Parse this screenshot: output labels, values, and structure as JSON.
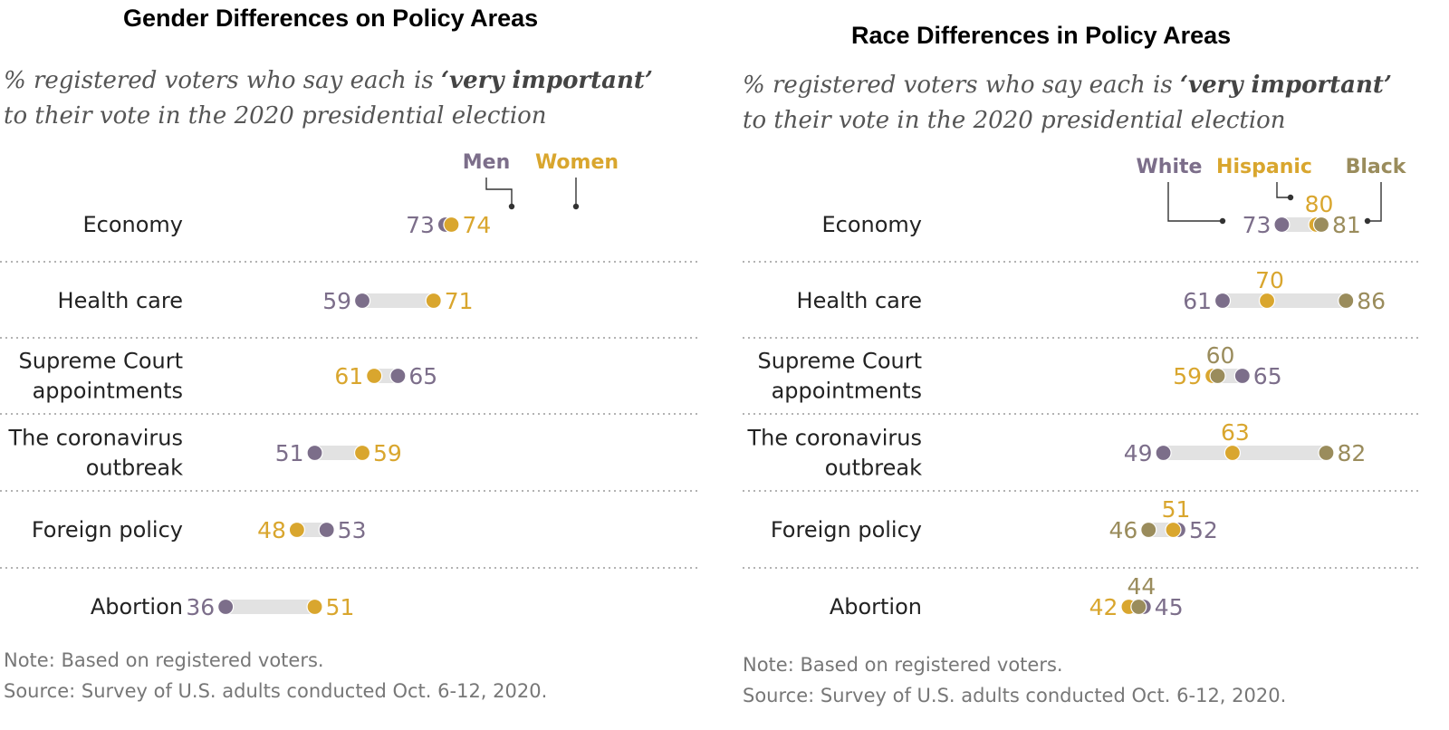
{
  "chart_data": [
    {
      "type": "dot-range",
      "title": "Gender Differences on Policy Areas",
      "subtitle_part1": "% registered voters who say each is ",
      "subtitle_emphasis": "‘very important’",
      "subtitle_line2": "to their vote in the 2020 presidential election",
      "categories": [
        [
          "Economy"
        ],
        [
          "Health care"
        ],
        [
          "Supreme Court",
          "appointments"
        ],
        [
          "The coronavirus",
          "outbreak"
        ],
        [
          "Foreign policy"
        ],
        [
          "Abortion"
        ]
      ],
      "series": [
        {
          "name": "Men",
          "color": "#7c6e8a",
          "values": [
            73,
            59,
            65,
            51,
            53,
            36
          ]
        },
        {
          "name": "Women",
          "color": "#d9a62e",
          "values": [
            74,
            71,
            61,
            59,
            48,
            51
          ]
        }
      ],
      "legend_placement": "top",
      "note": "Note: Based on registered voters.",
      "source": "Source: Survey of U.S. adults conducted Oct. 6-12, 2020."
    },
    {
      "type": "dot-range",
      "title": "Race Differences in Policy Areas",
      "subtitle_part1": "% registered voters who say each is ",
      "subtitle_emphasis": "‘very important’",
      "subtitle_line2": "to their vote in the 2020 presidential election",
      "categories": [
        [
          "Economy"
        ],
        [
          "Health care"
        ],
        [
          "Supreme Court",
          "appointments"
        ],
        [
          "The coronavirus",
          "outbreak"
        ],
        [
          "Foreign policy"
        ],
        [
          "Abortion"
        ]
      ],
      "series": [
        {
          "name": "White",
          "color": "#7c6e8a",
          "values": [
            73,
            61,
            65,
            49,
            52,
            45
          ]
        },
        {
          "name": "Hispanic",
          "color": "#d9a62e",
          "values": [
            80,
            70,
            59,
            63,
            51,
            42
          ]
        },
        {
          "name": "Black",
          "color": "#9a8c5c",
          "values": [
            81,
            86,
            60,
            82,
            46,
            44
          ]
        }
      ],
      "legend_placement": "top",
      "note": "Note: Based on registered voters.",
      "source": "Source: Survey of U.S. adults conducted Oct. 6-12, 2020."
    }
  ]
}
